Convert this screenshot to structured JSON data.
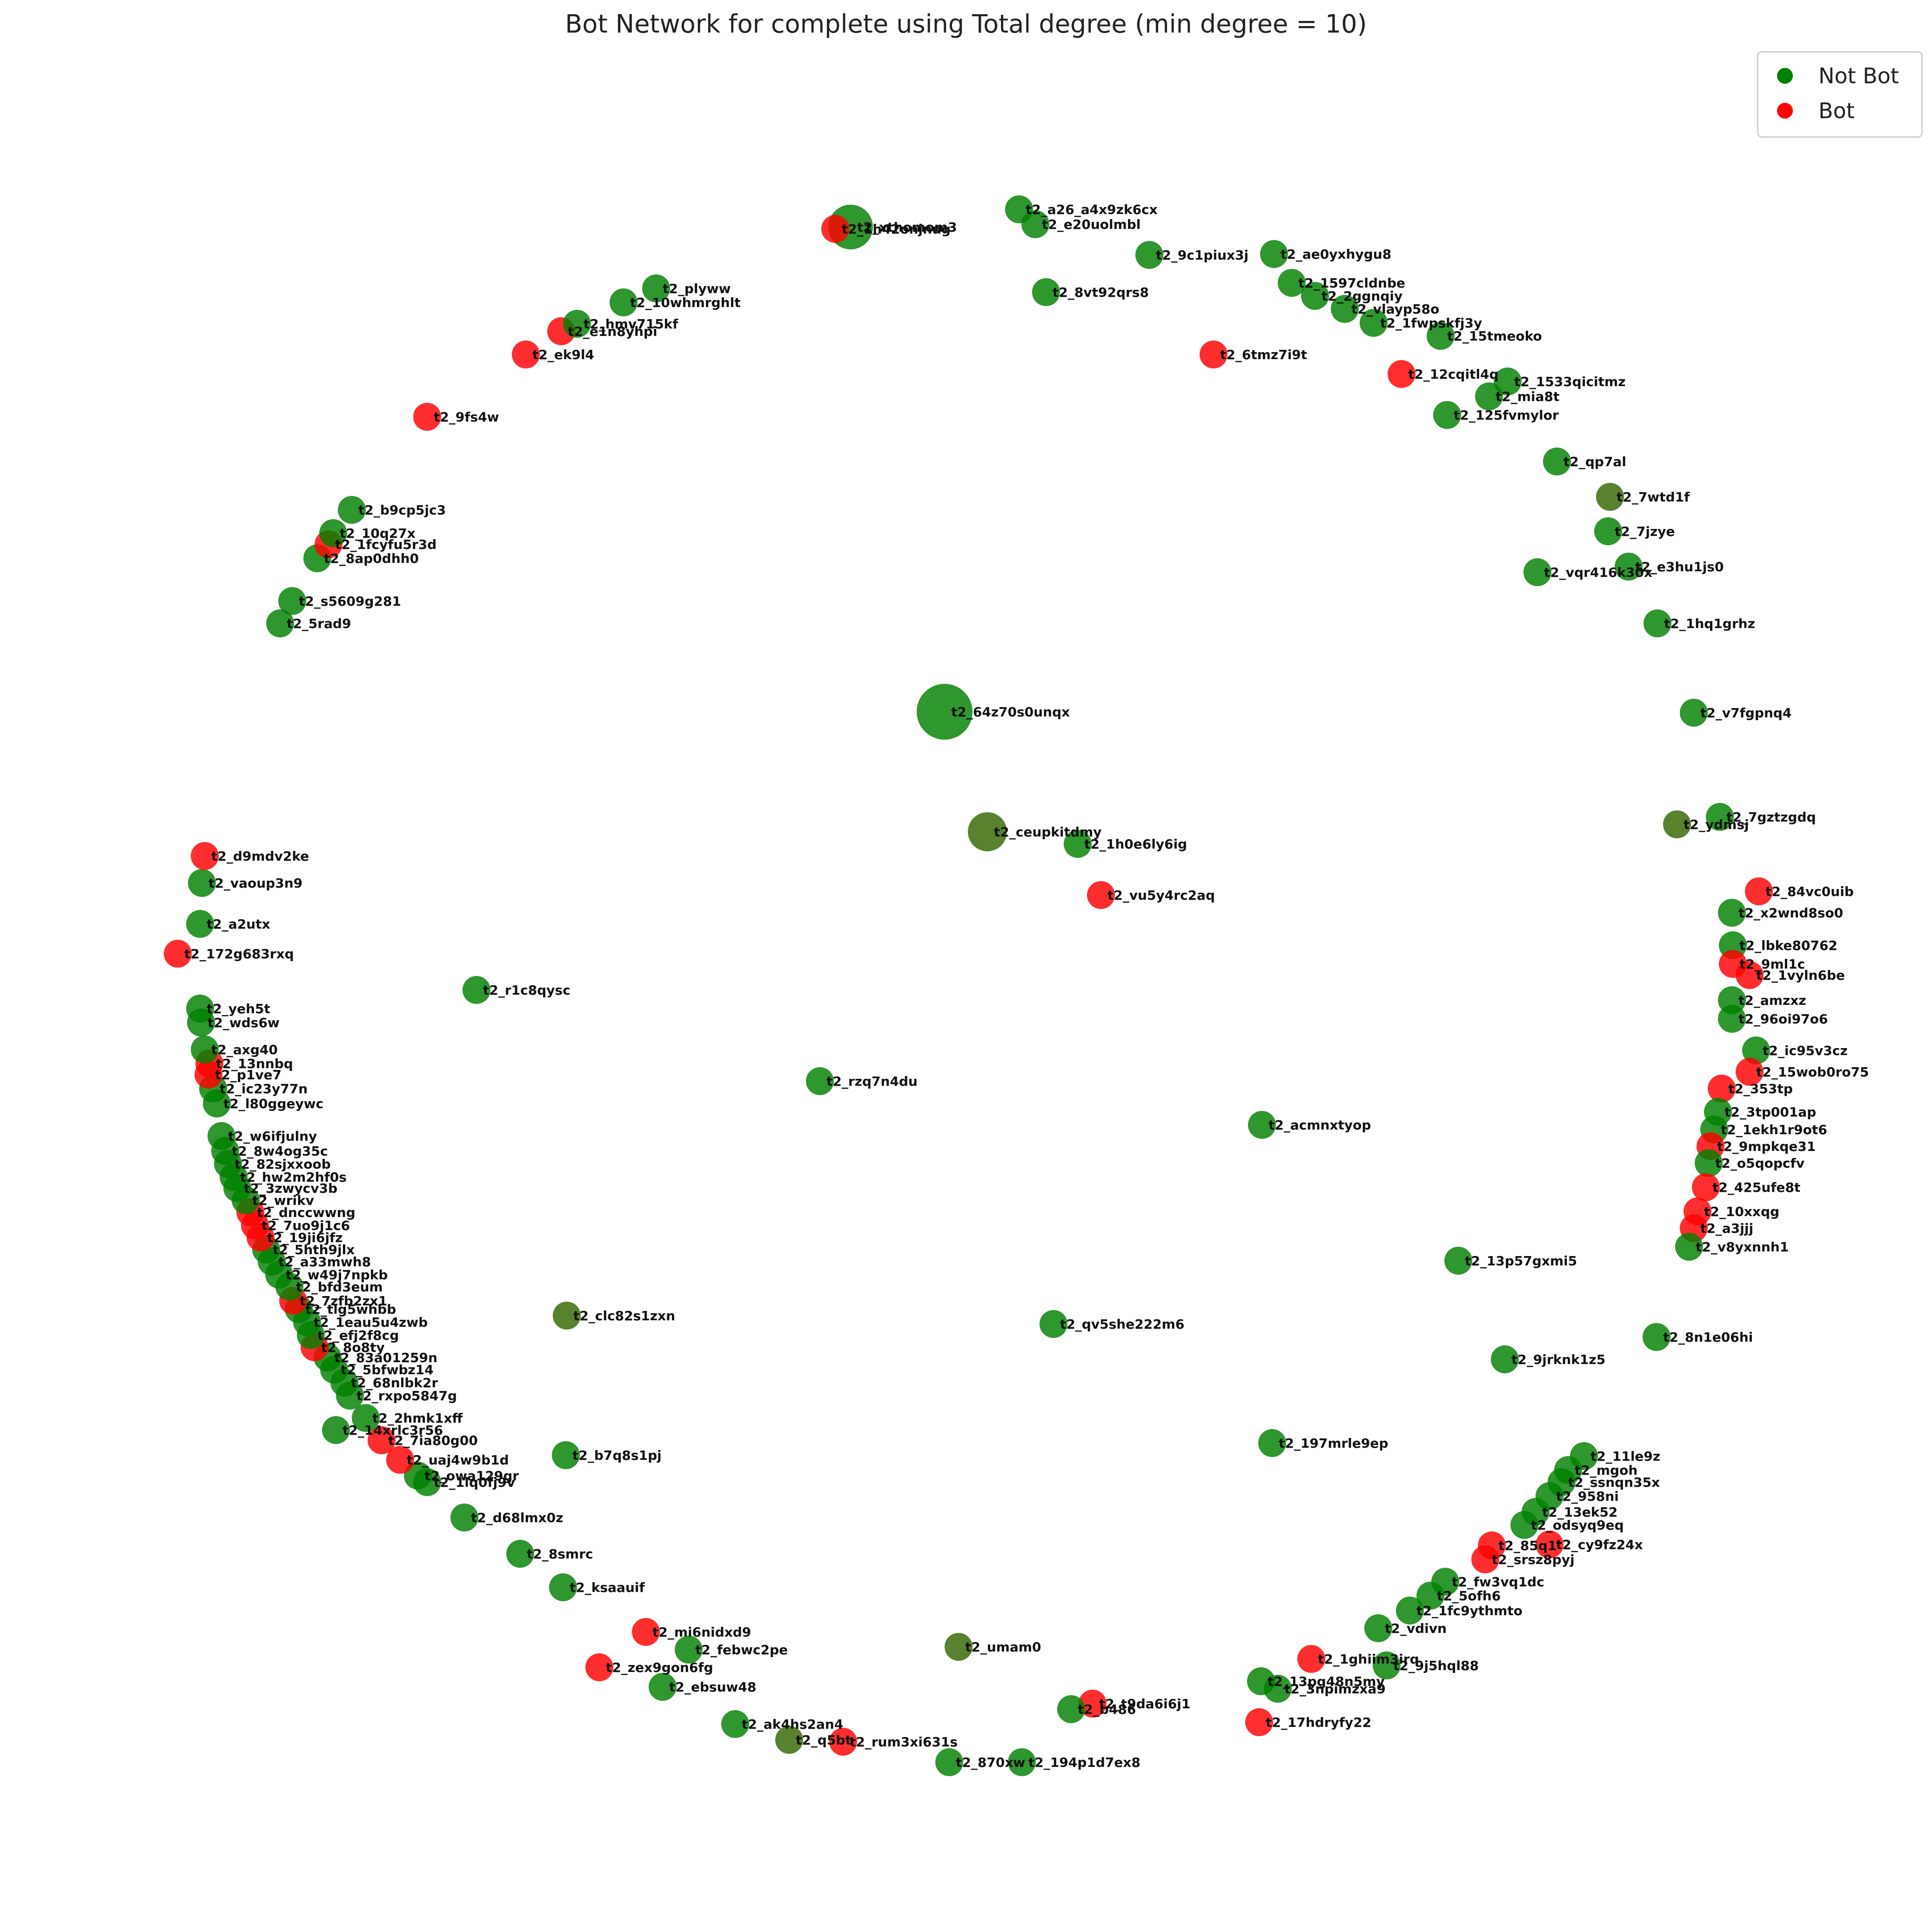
{
  "title": "Bot Network for complete using Total degree (min degree = 10)",
  "colors": {
    "not_bot": "#008000",
    "bot": "#ff0000",
    "dark_green": "#336600"
  },
  "legend": {
    "not_bot_label": "Not Bot",
    "bot_label": "Bot"
  },
  "nodes": [
    {
      "label": "t2_xthomom3",
      "bot": false,
      "size": "xl"
    },
    {
      "label": "t2_1h42onjnug",
      "bot": true
    },
    {
      "label": "t2_a26_a4x9zk6cx",
      "bot": false
    },
    {
      "label": "t2_e20uolmbl",
      "bot": false
    },
    {
      "label": "t2_9c1piux3j",
      "bot": false
    },
    {
      "label": "t2_ae0yxhygu8",
      "bot": false
    },
    {
      "label": "t2_8vt92qrs8",
      "bot": false
    },
    {
      "label": "t2_1597cldnbe",
      "bot": false
    },
    {
      "label": "t2_2ggnqiy",
      "bot": false
    },
    {
      "label": "t2_vlayp58o",
      "bot": false
    },
    {
      "label": "t2_1fwpskfj3y",
      "bot": false
    },
    {
      "label": "t2_15tmeoko",
      "bot": false
    },
    {
      "label": "t2_6tmz7i9t",
      "bot": true
    },
    {
      "label": "t2_12cqitl4q",
      "bot": true
    },
    {
      "label": "t2_1533qicitmz",
      "bot": false
    },
    {
      "label": "t2_mia8t",
      "bot": false
    },
    {
      "label": "t2_125fvmylor",
      "bot": false
    },
    {
      "label": "t2_qp7al",
      "bot": false
    },
    {
      "label": "t2_7wtd1f",
      "bot": false,
      "dark": true
    },
    {
      "label": "t2_7jzye",
      "bot": false
    },
    {
      "label": "t2_e3hu1js0",
      "bot": false
    },
    {
      "label": "t2_vqr416k30x",
      "bot": false
    },
    {
      "label": "t2_1hq1grhz",
      "bot": false
    },
    {
      "label": "t2_v7fgpnq4",
      "bot": false
    },
    {
      "label": "t2_7gztzgdq",
      "bot": false
    },
    {
      "label": "t2_ydmsj",
      "bot": false,
      "dark": true
    },
    {
      "label": "t2_84vc0uib",
      "bot": true
    },
    {
      "label": "t2_x2wnd8so0",
      "bot": false
    },
    {
      "label": "t2_lbke80762",
      "bot": false
    },
    {
      "label": "t2_9ml1c",
      "bot": true
    },
    {
      "label": "t2_1vyln6be",
      "bot": true
    },
    {
      "label": "t2_amzxz",
      "bot": false
    },
    {
      "label": "t2_96oi97o6",
      "bot": false
    },
    {
      "label": "t2_ic95v3cz",
      "bot": false
    },
    {
      "label": "t2_15wob0ro75",
      "bot": true
    },
    {
      "label": "t2_353tp",
      "bot": true
    },
    {
      "label": "t2_3tp001ap",
      "bot": false
    },
    {
      "label": "t2_1ekh1r9ot6",
      "bot": false
    },
    {
      "label": "t2_9mpkqe31",
      "bot": true
    },
    {
      "label": "t2_o5qopcfv",
      "bot": false
    },
    {
      "label": "t2_425ufe8t",
      "bot": true
    },
    {
      "label": "t2_10xxqg",
      "bot": true
    },
    {
      "label": "t2_a3jjj",
      "bot": true
    },
    {
      "label": "t2_v8yxnnh1",
      "bot": false
    },
    {
      "label": "t2_8n1e06hi",
      "bot": false
    },
    {
      "label": "t2_11le9z",
      "bot": false
    },
    {
      "label": "t2_mgoh",
      "bot": false
    },
    {
      "label": "t2_ssnqn35x",
      "bot": false
    },
    {
      "label": "t2_958ni",
      "bot": false
    },
    {
      "label": "t2_13ek52",
      "bot": false
    },
    {
      "label": "t2_odsyq9eq",
      "bot": false
    },
    {
      "label": "t2_85q1",
      "bot": true
    },
    {
      "label": "t2_cy9fz24x",
      "bot": true
    },
    {
      "label": "t2_srsz8pyj",
      "bot": true
    },
    {
      "label": "t2_fw3vq1dc",
      "bot": false
    },
    {
      "label": "t2_5ofh6",
      "bot": false
    },
    {
      "label": "t2_1fc9ythmto",
      "bot": false
    },
    {
      "label": "t2_vdivn",
      "bot": false
    },
    {
      "label": "t2_1ghiim3irq",
      "bot": true
    },
    {
      "label": "t2_9j5hql88",
      "bot": false
    },
    {
      "label": "t2_13pg48n5my",
      "bot": false
    },
    {
      "label": "t2_3npimzxa9",
      "bot": false
    },
    {
      "label": "t2_17hdryfy22",
      "bot": true
    },
    {
      "label": "t2_t9da6i6j1",
      "bot": true
    },
    {
      "label": "t2_b486",
      "bot": false
    },
    {
      "label": "t2_194p1d7ex8",
      "bot": false
    },
    {
      "label": "t2_870xw",
      "bot": false
    },
    {
      "label": "t2_rum3xi631s",
      "bot": true
    },
    {
      "label": "t2_q5bt",
      "bot": false,
      "dark": true
    },
    {
      "label": "t2_ak4hs2an4",
      "bot": false
    },
    {
      "label": "t2_ebsuw48",
      "bot": false
    },
    {
      "label": "t2_zex9gon6fg",
      "bot": true
    },
    {
      "label": "t2_umam0",
      "bot": false,
      "dark": true
    },
    {
      "label": "t2_febwc2pe",
      "bot": false
    },
    {
      "label": "t2_mi6nidxd9",
      "bot": true
    },
    {
      "label": "t2_ksaauif",
      "bot": false
    },
    {
      "label": "t2_8smrc",
      "bot": false
    },
    {
      "label": "t2_d68lmx0z",
      "bot": false
    },
    {
      "label": "t2_owa129gr",
      "bot": false
    },
    {
      "label": "t2_1lq0fj9v",
      "bot": false
    },
    {
      "label": "t2_uaj4w9b1d",
      "bot": true
    },
    {
      "label": "t2_7ia80g00",
      "bot": true
    },
    {
      "label": "t2_14xrlc3r56",
      "bot": false
    },
    {
      "label": "t2_2hmk1xff",
      "bot": false
    },
    {
      "label": "t2_rxpo5847g",
      "bot": false
    },
    {
      "label": "t2_68nlbk2r",
      "bot": false
    },
    {
      "label": "t2_5bfwbz14",
      "bot": false
    },
    {
      "label": "t2_83a01259n",
      "bot": false
    },
    {
      "label": "t2_8o8ty",
      "bot": true
    },
    {
      "label": "t2_efj2f8cg",
      "bot": false
    },
    {
      "label": "t2_1eau5u4zwb",
      "bot": false
    },
    {
      "label": "t2_tlg5whbb",
      "bot": false
    },
    {
      "label": "t2_7zfb2zx1",
      "bot": true
    },
    {
      "label": "t2_bfd3eum",
      "bot": false
    },
    {
      "label": "t2_w49j7npkb",
      "bot": false
    },
    {
      "label": "t2_a33mwh8",
      "bot": false
    },
    {
      "label": "t2_5hth9jlx",
      "bot": false
    },
    {
      "label": "t2_19ji6jfz",
      "bot": true
    },
    {
      "label": "t2_7uo9j1c6",
      "bot": true
    },
    {
      "label": "t2_dnccwwng",
      "bot": true
    },
    {
      "label": "t2_wrikv",
      "bot": false
    },
    {
      "label": "t2_3zwycv3b",
      "bot": false
    },
    {
      "label": "t2_hw2m2hf0s",
      "bot": false
    },
    {
      "label": "t2_82sjxxoob",
      "bot": false
    },
    {
      "label": "t2_8w4og35c",
      "bot": false
    },
    {
      "label": "t2_w6ifjulny",
      "bot": false
    },
    {
      "label": "t2_l80ggeywc",
      "bot": false
    },
    {
      "label": "t2_ic23y77n",
      "bot": false
    },
    {
      "label": "t2_p1ve7",
      "bot": true
    },
    {
      "label": "t2_13nnbq",
      "bot": true
    },
    {
      "label": "t2_axg40",
      "bot": false
    },
    {
      "label": "t2_wds6w",
      "bot": false
    },
    {
      "label": "t2_yeh5t",
      "bot": false
    },
    {
      "label": "t2_172g683rxq",
      "bot": true
    },
    {
      "label": "t2_a2utx",
      "bot": false
    },
    {
      "label": "t2_vaoup3n9",
      "bot": false
    },
    {
      "label": "t2_d9mdv2ke",
      "bot": true
    },
    {
      "label": "t2_5rad9",
      "bot": false
    },
    {
      "label": "t2_s5609g281",
      "bot": false
    },
    {
      "label": "t2_8ap0dhh0",
      "bot": false
    },
    {
      "label": "t2_1fcyfu5r3d",
      "bot": true
    },
    {
      "label": "t2_10q27x",
      "bot": false
    },
    {
      "label": "t2_b9cp5jc3",
      "bot": false
    },
    {
      "label": "t2_9fs4w",
      "bot": true
    },
    {
      "label": "t2_ek9l4",
      "bot": true
    },
    {
      "label": "t2_e1n8yhpi",
      "bot": true
    },
    {
      "label": "t2_hmv715kf",
      "bot": false
    },
    {
      "label": "t2_10whmrghlt",
      "bot": false
    },
    {
      "label": "t2_plyww",
      "bot": false
    },
    {
      "label": "t2_64z70s0unqx",
      "bot": false,
      "size": "xxl"
    },
    {
      "label": "t2_ceupkitdmy",
      "bot": false,
      "size": "l",
      "dark": true
    },
    {
      "label": "t2_1h0e6ly6ig",
      "bot": false
    },
    {
      "label": "t2_vu5y4rc2aq",
      "bot": true
    },
    {
      "label": "t2_r1c8qysc",
      "bot": false
    },
    {
      "label": "t2_rzq7n4du",
      "bot": false
    },
    {
      "label": "t2_acmnxtyop",
      "bot": false
    },
    {
      "label": "t2_13p57gxmi5",
      "bot": false
    },
    {
      "label": "t2_clc82s1zxn",
      "bot": false,
      "dark": true
    },
    {
      "label": "t2_qv5she222m6",
      "bot": false
    },
    {
      "label": "t2_9jrknk1z5",
      "bot": false
    },
    {
      "label": "t2_b7q8s1pj",
      "bot": false
    },
    {
      "label": "t2_197mrle9ep",
      "bot": false
    }
  ]
}
